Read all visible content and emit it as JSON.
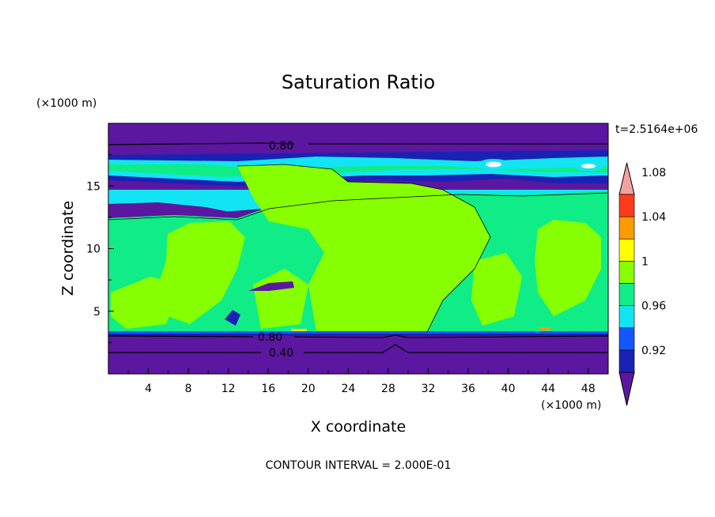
{
  "chart_data": {
    "type": "contour",
    "title": "Saturation Ratio",
    "xlabel": "X coordinate",
    "ylabel": "Z coordinate",
    "x_units": "(×1000 m)",
    "y_units": "(×1000 m)",
    "xlim": [
      0,
      50
    ],
    "ylim": [
      0,
      20
    ],
    "x_ticks": [
      "4",
      "8",
      "12",
      "16",
      "20",
      "24",
      "28",
      "32",
      "36",
      "40",
      "44",
      "48"
    ],
    "y_ticks": [
      "5",
      "10",
      "15"
    ],
    "time_label": "t=2.5164e+06",
    "footer": "CONTOUR INTERVAL = 2.000E-01",
    "contour_labels": [
      "0.80",
      "0.80",
      "0.40"
    ],
    "colorbar": {
      "labels": [
        "0.92",
        "0.96",
        "1",
        "1.04",
        "1.08"
      ],
      "colors": [
        "#5b17a0",
        "#1a22b5",
        "#1358ff",
        "#12e4f4",
        "#10ed86",
        "#86ff00",
        "#ffff00",
        "#ff9a00",
        "#ff3b1c",
        "#f2a1a1"
      ]
    },
    "fill_colors": {
      "below": "#5b17a0",
      "dark_blue": "#1a22b5",
      "blue": "#1358ff",
      "cyan": "#12e4f4",
      "green": "#10ed86",
      "lime": "#86ff00",
      "yellow": "#ffff00",
      "orange": "#ff9a00"
    }
  }
}
